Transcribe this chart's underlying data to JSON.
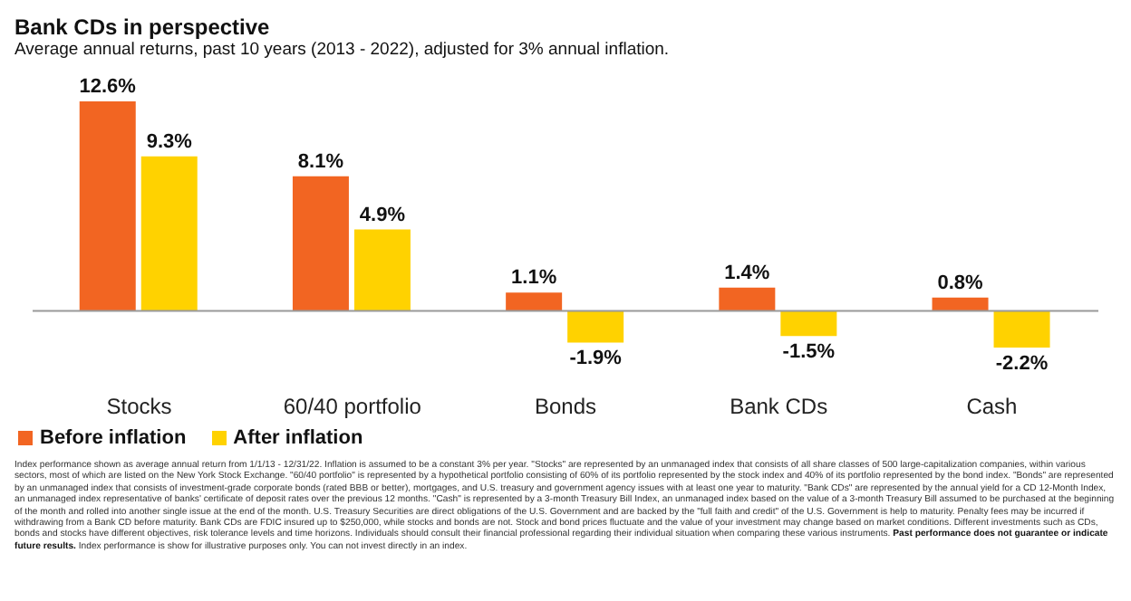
{
  "chart_data": {
    "type": "bar",
    "title": "Bank CDs in perspective",
    "subtitle": "Average annual returns, past 10 years (2013 - 2022), adjusted for 3% annual inflation.",
    "categories": [
      "Stocks",
      "60/40 portfolio",
      "Bonds",
      "Bank CDs",
      "Cash"
    ],
    "series": [
      {
        "name": "Before inflation",
        "color": "#f26522",
        "values": [
          12.6,
          8.1,
          1.1,
          1.4,
          0.8
        ],
        "value_labels": [
          "12.6%",
          "8.1%",
          "1.1%",
          "1.4%",
          "0.8%"
        ]
      },
      {
        "name": "After inflation",
        "color": "#ffd200",
        "values": [
          9.3,
          4.9,
          -1.9,
          -1.5,
          -2.2
        ],
        "value_labels": [
          "9.3%",
          "4.9%",
          "-1.9%",
          "-1.5%",
          "-2.2%"
        ]
      }
    ],
    "tick_labels": "x",
    "legend": "bottom left",
    "grid": false,
    "annotations": [
      "Index performance shown as average annual return from 1/1/13 - 12/31/22. Inflation is assumed to be a constant 3% per year. \"Stocks\" are represented by an unmanaged index that consists of all share classes of 500 large-capitalization companies, within various sectors, most of which are listed on the New York Stock Exchange. \"60/40 portfolio\" is represented by a hypothetical portfolio consisting of 60% of its portfolio represented by the stock index and 40% of its portfolio represented by the bond index. \"Bonds\" are represented by an unmanaged index that consists of investment-grade corporate bonds (rated BBB or better), mortgages, and U.S. treasury and government agency issues with at least one year to maturity. \"Bank CDs\" are represented by the annual yield for a CD 12-Month Index, an unmanaged index representative of banks' certificate of deposit rates over the previous 12 months. \"Cash\" is represented by a 3-month Treasury Bill Index, an unmanaged index based on the value of a 3-month Treasury Bill assumed to be purchased at the beginning of the month and rolled into another single issue at the end of the month. U.S. Treasury Securities are direct obligations of the U.S. Government and are backed by the \"full faith and credit\" of the U.S. Government is help to maturity. Penalty fees may be incurred if withdrawing from a Bank CD before maturity. Bank CDs are FDIC insured up to $250,000, while stocks and bonds are not. Stock and bond prices fluctuate and the value of your investment may change based on market conditions. Different investments such as CDs, bonds and stocks have different objectives, risk tolerance levels and time horizons. Individuals should consult their financial professional regarding their individual situation when comparing these various instruments.",
      "Past performance does not guarantee or indicate future results.",
      "Index performance is show for illustrative purposes only. You can not invest directly in an index."
    ]
  }
}
